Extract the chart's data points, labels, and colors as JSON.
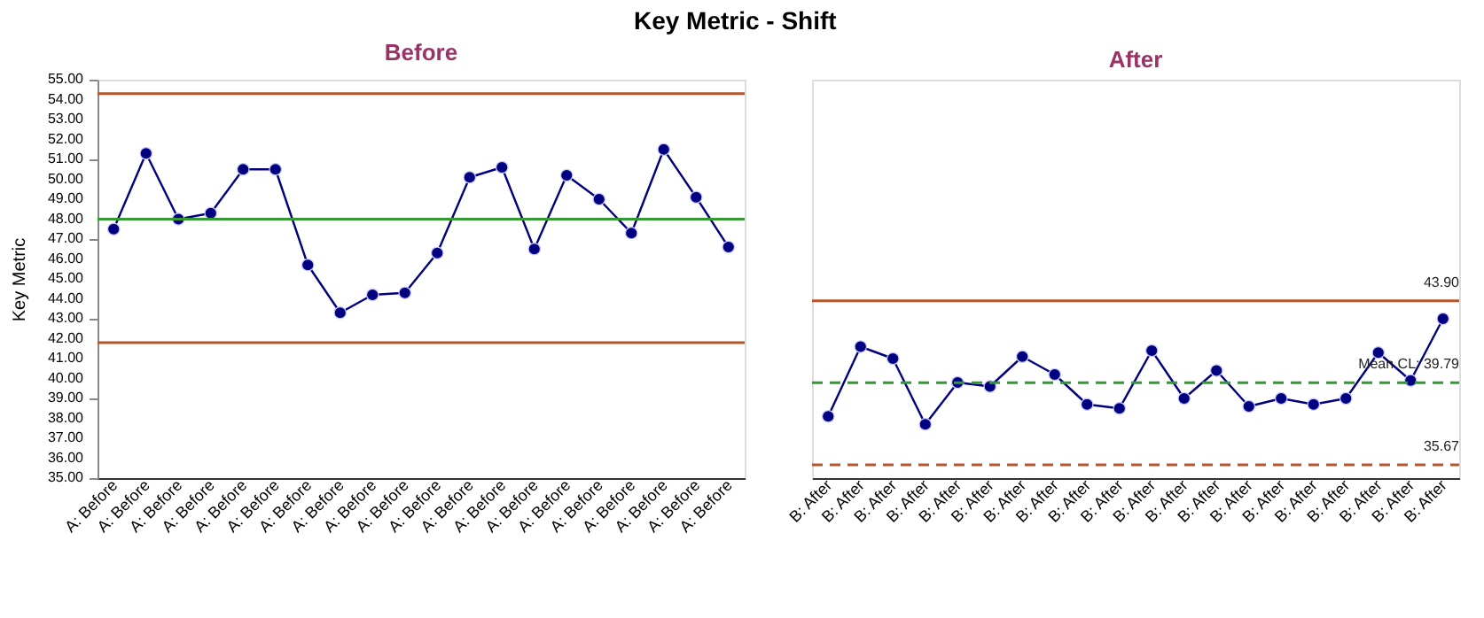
{
  "chart_data": [
    {
      "type": "line",
      "title": "Key Metric - Shift",
      "subtitle": "Before",
      "ylabel": "Key Metric",
      "categories": [
        "A: Before",
        "A: Before",
        "A: Before",
        "A: Before",
        "A: Before",
        "A: Before",
        "A: Before",
        "A: Before",
        "A: Before",
        "A: Before",
        "A: Before",
        "A: Before",
        "A: Before",
        "A: Before",
        "A: Before",
        "A: Before",
        "A: Before",
        "A: Before",
        "A: Before",
        "A: Before"
      ],
      "series": [
        {
          "color": "#000080",
          "values": [
            47.5,
            51.3,
            48.0,
            48.3,
            50.5,
            50.5,
            45.7,
            43.3,
            44.2,
            44.3,
            46.3,
            50.1,
            50.6,
            46.5,
            50.2,
            49.0,
            47.3,
            51.5,
            49.1,
            46.6
          ]
        }
      ],
      "ylim": [
        35,
        55
      ],
      "yticks": [
        {
          "value": 35,
          "label": "35.00"
        },
        {
          "value": 36,
          "label": "36.00"
        },
        {
          "value": 37,
          "label": "37.00"
        },
        {
          "value": 38,
          "label": "38.00"
        },
        {
          "value": 39,
          "label": "39.00"
        },
        {
          "value": 40,
          "label": "40.00"
        },
        {
          "value": 41,
          "label": "41.00"
        },
        {
          "value": 42,
          "label": "42.00"
        },
        {
          "value": 43,
          "label": "43.00"
        },
        {
          "value": 44,
          "label": "44.00"
        },
        {
          "value": 45,
          "label": "45.00"
        },
        {
          "value": 46,
          "label": "46.00"
        },
        {
          "value": 47,
          "label": "47.00"
        },
        {
          "value": 48,
          "label": "48.00"
        },
        {
          "value": 49,
          "label": "49.00"
        },
        {
          "value": 50,
          "label": "50.00"
        },
        {
          "value": 51,
          "label": "51.00"
        },
        {
          "value": 52,
          "label": "52.00"
        },
        {
          "value": 53,
          "label": "53.00"
        },
        {
          "value": 54,
          "label": "54.00"
        },
        {
          "value": 55,
          "label": "55.00"
        }
      ],
      "ref_lines": [
        {
          "axis": "y",
          "value": 54.3,
          "color": "#b5552b",
          "line_style": "solid"
        },
        {
          "axis": "y",
          "value": 48.0,
          "color": "#339933",
          "line_style": "solid"
        },
        {
          "axis": "y",
          "value": 41.8,
          "color": "#b5552b",
          "line_style": "solid"
        }
      ],
      "marker": "circle",
      "line_style": "solid",
      "grid": false
    },
    {
      "type": "line",
      "title": "After",
      "categories": [
        "B: After",
        "B: After",
        "B: After",
        "B: After",
        "B: After",
        "B: After",
        "B: After",
        "B: After",
        "B: After",
        "B: After",
        "B: After",
        "B: After",
        "B: After",
        "B: After",
        "B: After",
        "B: After",
        "B: After",
        "B: After",
        "B: After",
        "B: After"
      ],
      "series": [
        {
          "color": "#000080",
          "values": [
            38.1,
            41.6,
            41.0,
            37.7,
            39.8,
            39.6,
            41.1,
            40.2,
            38.7,
            38.5,
            41.4,
            39.0,
            40.4,
            38.6,
            39.0,
            38.7,
            39.0,
            41.3,
            39.9,
            43.0
          ]
        }
      ],
      "ylim": [
        35,
        55
      ],
      "tick_labels": "x",
      "ref_lines": [
        {
          "axis": "y",
          "value": 43.9,
          "label": "43.90",
          "color": "#b5552b",
          "line_style": "solid"
        },
        {
          "axis": "y",
          "value": 39.79,
          "label": "Mean CL: 39.79",
          "color": "#339933",
          "line_style": "dashed"
        },
        {
          "axis": "y",
          "value": 35.67,
          "label": "35.67",
          "color": "#b5552b",
          "line_style": "dashed"
        }
      ],
      "marker": "circle",
      "line_style": "solid",
      "grid": false
    }
  ]
}
